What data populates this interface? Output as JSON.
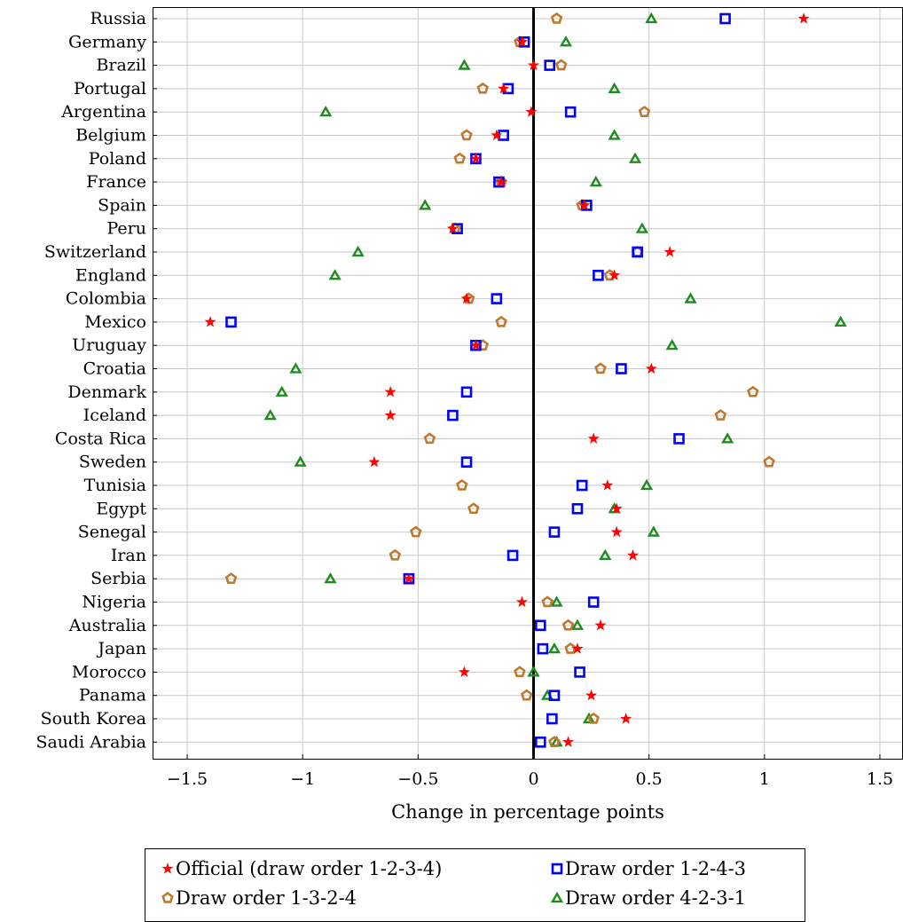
{
  "chart_data": {
    "type": "scatter",
    "title": "",
    "xlabel": "Change in percentage points",
    "ylabel": "",
    "xlim": [
      -1.65,
      1.6
    ],
    "xticks": [
      -1.5,
      -1,
      -0.5,
      0,
      0.5,
      1,
      1.5
    ],
    "xtick_labels": [
      "−1.5",
      "−1",
      "−0.5",
      "0",
      "0.5",
      "1",
      "1.5"
    ],
    "grid": true,
    "legend_position": "bottom",
    "categories": [
      "Russia",
      "Germany",
      "Brazil",
      "Portugal",
      "Argentina",
      "Belgium",
      "Poland",
      "France",
      "Spain",
      "Peru",
      "Switzerland",
      "England",
      "Colombia",
      "Mexico",
      "Uruguay",
      "Croatia",
      "Denmark",
      "Iceland",
      "Costa Rica",
      "Sweden",
      "Tunisia",
      "Egypt",
      "Senegal",
      "Iran",
      "Serbia",
      "Nigeria",
      "Australia",
      "Japan",
      "Morocco",
      "Panama",
      "South Korea",
      "Saudi Arabia"
    ],
    "series": [
      {
        "name": "Official (draw order 1-2-3-4)",
        "marker": "star",
        "color": "#ff0000",
        "values": [
          1.17,
          -0.05,
          0.0,
          -0.13,
          -0.01,
          -0.16,
          -0.25,
          -0.14,
          0.22,
          -0.35,
          0.59,
          0.35,
          -0.29,
          -1.4,
          -0.25,
          0.51,
          -0.62,
          -0.62,
          0.26,
          -0.69,
          0.32,
          0.36,
          0.36,
          0.43,
          -0.54,
          -0.05,
          0.29,
          0.19,
          -0.3,
          0.25,
          0.4,
          0.15
        ]
      },
      {
        "name": "Draw order 1-2-4-3",
        "marker": "square",
        "color": "#0000ff",
        "values": [
          0.83,
          -0.04,
          0.07,
          -0.11,
          0.16,
          -0.13,
          -0.25,
          -0.15,
          0.23,
          -0.33,
          0.45,
          0.28,
          -0.16,
          -1.31,
          -0.25,
          0.38,
          -0.29,
          -0.35,
          0.63,
          -0.29,
          0.21,
          0.19,
          0.09,
          -0.09,
          -0.54,
          0.26,
          0.03,
          0.04,
          0.2,
          0.09,
          0.08,
          0.03
        ]
      },
      {
        "name": "Draw order 1-3-2-4",
        "marker": "pentagon",
        "color": "#bf7a30",
        "values": [
          0.1,
          -0.06,
          0.12,
          -0.22,
          0.48,
          -0.29,
          -0.32,
          -0.14,
          0.21,
          -0.34,
          0.45,
          0.33,
          -0.28,
          -0.14,
          -0.22,
          0.29,
          0.95,
          0.81,
          -0.45,
          1.02,
          -0.31,
          -0.26,
          -0.51,
          -0.6,
          -1.31,
          0.06,
          0.15,
          0.16,
          -0.06,
          -0.03,
          0.26,
          0.09
        ]
      },
      {
        "name": "Draw order 4-2-3-1",
        "marker": "triangle",
        "color": "#1f8c1f",
        "values": [
          0.51,
          0.14,
          -0.3,
          0.35,
          -0.9,
          0.35,
          0.44,
          0.27,
          -0.47,
          0.47,
          -0.76,
          -0.86,
          0.68,
          1.33,
          0.6,
          -1.03,
          -1.09,
          -1.14,
          0.84,
          -1.01,
          0.49,
          0.35,
          0.52,
          0.31,
          -0.88,
          0.1,
          0.19,
          0.09,
          0.0,
          0.06,
          0.24,
          0.1
        ]
      }
    ]
  }
}
